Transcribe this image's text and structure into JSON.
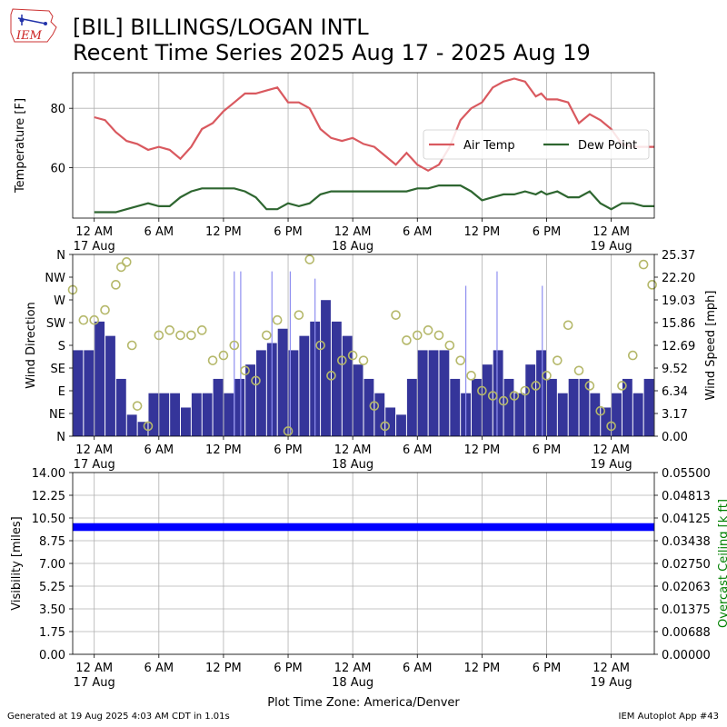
{
  "header": {
    "logo_text": "IEM",
    "title_line1": "[BIL] BILLINGS/LOGAN INTL",
    "title_line2": "Recent Time Series 2025 Aug 17 - 2025 Aug 19"
  },
  "footer": {
    "generated": "Generated at 19 Aug 2025 4:03 AM CDT in 1.01s",
    "app": "IEM Autoplot App #43"
  },
  "colors": {
    "air_temp": "#d9595f",
    "dew_point": "#2e6630",
    "wind_speed_bar": "#35359a",
    "wind_gust": "#8f8ff0",
    "wind_direction": "#b5b86a",
    "visibility": "#0000ff",
    "ceiling_axis": "#008000",
    "grid": "#b0b0b0"
  },
  "chart_data": [
    {
      "type": "line",
      "name": "temperature",
      "ylabel": "Temperature [F]",
      "ylim": [
        43,
        92
      ],
      "yticks": [
        60,
        80
      ],
      "xlim": [
        -2,
        52
      ],
      "x_unit": "hours since 2025-08-17 00:00 America/Denver",
      "grid": true,
      "legend_position": "right",
      "series": [
        {
          "name": "Air Temp",
          "color": "#d9595f",
          "x": [
            0,
            1,
            2,
            3,
            4,
            5,
            6,
            7,
            8,
            9,
            10,
            11,
            12,
            13,
            14,
            15,
            16,
            17,
            18,
            19,
            20,
            21,
            22,
            23,
            24,
            25,
            26,
            27,
            28,
            29,
            30,
            31,
            32,
            33,
            34,
            35,
            36,
            37,
            38,
            39,
            40,
            41,
            41.5,
            42,
            43,
            44,
            45,
            46,
            47,
            48,
            49,
            50,
            51,
            52
          ],
          "y": [
            77,
            76,
            72,
            69,
            68,
            66,
            67,
            66,
            63,
            67,
            73,
            75,
            79,
            82,
            85,
            85,
            86,
            87,
            82,
            82,
            80,
            73,
            70,
            69,
            70,
            68,
            67,
            64,
            61,
            65,
            61,
            59,
            61,
            67,
            76,
            80,
            82,
            87,
            89,
            90,
            89,
            84,
            85,
            83,
            83,
            82,
            75,
            78,
            76,
            73,
            68,
            67,
            67,
            67
          ]
        },
        {
          "name": "Dew Point",
          "color": "#2e6630",
          "x": [
            0,
            1,
            2,
            3,
            4,
            5,
            6,
            7,
            8,
            9,
            10,
            11,
            12,
            13,
            14,
            15,
            16,
            17,
            18,
            19,
            20,
            21,
            22,
            23,
            24,
            25,
            26,
            27,
            28,
            29,
            30,
            31,
            32,
            33,
            34,
            35,
            36,
            37,
            38,
            39,
            40,
            41,
            41.5,
            42,
            43,
            44,
            45,
            46,
            47,
            48,
            49,
            50,
            51,
            52
          ],
          "y": [
            45,
            45,
            45,
            46,
            47,
            48,
            47,
            47,
            50,
            52,
            53,
            53,
            53,
            53,
            52,
            50,
            46,
            46,
            48,
            47,
            48,
            51,
            52,
            52,
            52,
            52,
            52,
            52,
            52,
            52,
            53,
            53,
            54,
            54,
            54,
            52,
            49,
            50,
            51,
            51,
            52,
            51,
            52,
            51,
            52,
            50,
            50,
            52,
            48,
            46,
            48,
            48,
            47,
            47
          ]
        }
      ]
    },
    {
      "type": "bar",
      "name": "wind",
      "ylabel_left": "Wind Direction",
      "ylabel_right": "Wind Speed [mph]",
      "left_ticklabels": [
        "N",
        "NE",
        "E",
        "SE",
        "S",
        "SW",
        "W",
        "NW",
        "N"
      ],
      "right_ticklabels": [
        "0.00",
        "3.17",
        "6.34",
        "9.52",
        "12.69",
        "15.86",
        "19.03",
        "22.20",
        "25.37"
      ],
      "direction_ylim": [
        0,
        360
      ],
      "speed_ylim": [
        0,
        25.37
      ],
      "xlim": [
        -2,
        52
      ],
      "grid": true,
      "series": [
        {
          "name": "Wind Speed",
          "color": "#35359a",
          "x": [
            -2,
            -1,
            0,
            1,
            2,
            3,
            4,
            5,
            6,
            7,
            8,
            9,
            10,
            11,
            12,
            13,
            14,
            15,
            16,
            17,
            18,
            19,
            20,
            21,
            22,
            23,
            24,
            25,
            26,
            27,
            28,
            29,
            30,
            31,
            32,
            33,
            34,
            35,
            36,
            37,
            38,
            39,
            40,
            41,
            42,
            43,
            44,
            45,
            46,
            47,
            48,
            49,
            50,
            51
          ],
          "y": [
            12,
            12,
            16,
            14,
            8,
            3,
            2,
            6,
            6,
            6,
            4,
            6,
            6,
            8,
            6,
            8,
            10,
            12,
            13,
            15,
            12,
            14,
            16,
            19,
            16,
            14,
            10,
            8,
            6,
            4,
            3,
            8,
            12,
            12,
            12,
            8,
            6,
            8,
            10,
            12,
            8,
            6,
            10,
            12,
            8,
            6,
            8,
            8,
            6,
            4,
            6,
            8,
            6,
            8
          ]
        },
        {
          "name": "Wind Gust",
          "color": "#8f8ff0",
          "x": [
            13,
            13.6,
            16.5,
            18.2,
            20.5,
            34.5,
            37.4,
            41.6
          ],
          "y": [
            23,
            23,
            23,
            23,
            22,
            21,
            23,
            21
          ]
        },
        {
          "name": "Wind Direction",
          "color": "#b5b86a",
          "x": [
            -2,
            -1,
            0,
            1,
            2,
            2.5,
            3,
            3.5,
            4,
            5,
            6,
            7,
            8,
            9,
            10,
            11,
            12,
            13,
            14,
            15,
            16,
            17,
            18,
            19,
            20,
            21,
            22,
            23,
            24,
            25,
            26,
            27,
            28,
            29,
            30,
            31,
            32,
            33,
            34,
            35,
            36,
            37,
            38,
            39,
            40,
            41,
            42,
            43,
            44,
            45,
            46,
            47,
            48,
            49,
            50,
            51,
            51.8
          ],
          "y": [
            290,
            230,
            230,
            250,
            300,
            335,
            345,
            180,
            60,
            20,
            200,
            210,
            200,
            200,
            210,
            150,
            160,
            180,
            130,
            110,
            200,
            230,
            10,
            240,
            350,
            180,
            120,
            150,
            160,
            150,
            60,
            20,
            240,
            190,
            200,
            210,
            200,
            180,
            150,
            120,
            90,
            80,
            70,
            80,
            90,
            100,
            120,
            150,
            220,
            130,
            100,
            50,
            20,
            100,
            160,
            340,
            300
          ]
        }
      ]
    },
    {
      "type": "area",
      "name": "visibility",
      "ylabel_left": "Visibility [miles]",
      "ylabel_right": "Overcast Ceiling [k ft]",
      "left_ticklabels": [
        "0.00",
        "1.75",
        "3.50",
        "5.25",
        "7.00",
        "8.75",
        "10.50",
        "12.25",
        "14.00"
      ],
      "right_ticklabels": [
        "0.00000",
        "0.00688",
        "0.01375",
        "0.02063",
        "0.02750",
        "0.03438",
        "0.04125",
        "0.04813",
        "0.05500"
      ],
      "ylim": [
        0,
        14
      ],
      "ceiling_ylim": [
        0,
        0.055
      ],
      "xlim": [
        -2,
        52
      ],
      "grid": true,
      "series": [
        {
          "name": "Visibility",
          "color": "#0000ff",
          "values": [
            10,
            10
          ]
        }
      ]
    }
  ],
  "xaxis": {
    "ticks": [
      {
        "label1": "12 AM",
        "label2": "17 Aug"
      },
      {
        "label1": "6 AM",
        "label2": ""
      },
      {
        "label1": "12 PM",
        "label2": ""
      },
      {
        "label1": "6 PM",
        "label2": ""
      },
      {
        "label1": "12 AM",
        "label2": "18 Aug"
      },
      {
        "label1": "6 AM",
        "label2": ""
      },
      {
        "label1": "12 PM",
        "label2": ""
      },
      {
        "label1": "6 PM",
        "label2": ""
      },
      {
        "label1": "12 AM",
        "label2": "19 Aug"
      }
    ],
    "tick_hours": [
      0,
      6,
      12,
      18,
      24,
      30,
      36,
      42,
      48
    ],
    "xlabel": "Plot Time Zone: America/Denver"
  }
}
